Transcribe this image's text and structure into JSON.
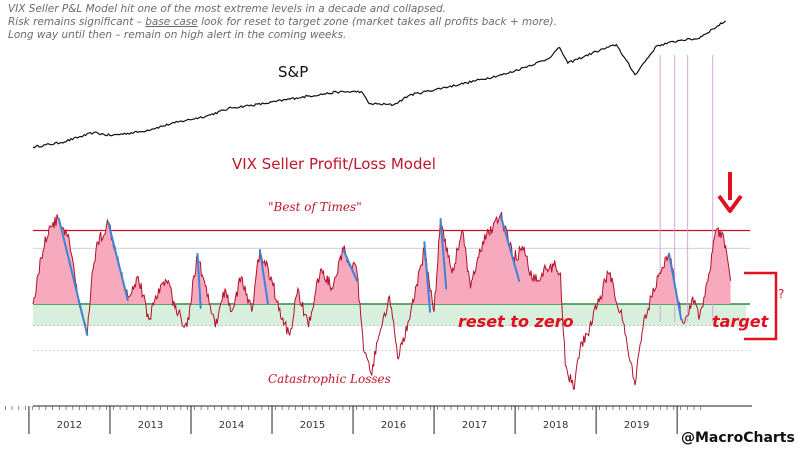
{
  "notes": {
    "line1": "VIX Seller P&L Model hit one of the most extreme levels in a decade and collapsed.",
    "line2_pre": "Risk remains significant – ",
    "line2_ul": "base case",
    "line2_post": " look for reset to target zone (market takes all profits back + more).",
    "line3": "Long way until then – remain on high alert in the coming weeks."
  },
  "labels": {
    "snp": "S&P",
    "model_title": "VIX Seller Profit/Loss Model",
    "best_of_times": "\"Best of Times\"",
    "catastrophic": "Catastrophic Losses",
    "reset": "reset to zero",
    "target": "target",
    "question": "?",
    "credit": "@MacroCharts"
  },
  "colors": {
    "sp_line": "#111111",
    "pnl_line": "#b3122a",
    "pnl_fill": "#f7a9bd",
    "target_zone": "#d9efdd",
    "target_line": "#2e8b3e",
    "downtrend": "#3a86d6",
    "arrow": "#e01020",
    "vline": "#d79ad2",
    "upper_line": "#c0152a"
  },
  "chart_data": {
    "type": "line",
    "title": "VIX Seller Profit/Loss Model",
    "xlabel": "",
    "ylabel": "",
    "x_tick_labels": [
      "2012",
      "2013",
      "2014",
      "2015",
      "2016",
      "2017",
      "2018",
      "2019"
    ],
    "x_range": [
      2011.55,
      2020.35
    ],
    "series": [
      {
        "name": "S&P",
        "points": [
          [
            2011.55,
            1150
          ],
          [
            2011.9,
            1230
          ],
          [
            2012.3,
            1400
          ],
          [
            2012.5,
            1350
          ],
          [
            2012.9,
            1420
          ],
          [
            2013.3,
            1570
          ],
          [
            2013.7,
            1690
          ],
          [
            2014.0,
            1830
          ],
          [
            2014.4,
            1900
          ],
          [
            2014.8,
            2000
          ],
          [
            2015.3,
            2100
          ],
          [
            2015.6,
            2110
          ],
          [
            2015.7,
            1900
          ],
          [
            2016.0,
            1880
          ],
          [
            2016.2,
            2050
          ],
          [
            2016.6,
            2170
          ],
          [
            2016.9,
            2260
          ],
          [
            2017.4,
            2420
          ],
          [
            2017.9,
            2670
          ],
          [
            2018.05,
            2870
          ],
          [
            2018.15,
            2600
          ],
          [
            2018.5,
            2800
          ],
          [
            2018.75,
            2920
          ],
          [
            2018.98,
            2400
          ],
          [
            2019.25,
            2900
          ],
          [
            2019.55,
            3000
          ],
          [
            2019.75,
            3020
          ],
          [
            2020.1,
            3330
          ]
        ]
      },
      {
        "name": "VIX Seller P&L",
        "points": [
          [
            2011.55,
            0.0
          ],
          [
            2011.65,
            0.6
          ],
          [
            2011.75,
            1.0
          ],
          [
            2011.87,
            1.1
          ],
          [
            2012.0,
            0.8
          ],
          [
            2012.1,
            0.1
          ],
          [
            2012.22,
            -0.4
          ],
          [
            2012.28,
            0.4
          ],
          [
            2012.35,
            0.8
          ],
          [
            2012.48,
            1.05
          ],
          [
            2012.6,
            0.6
          ],
          [
            2012.72,
            0.1
          ],
          [
            2012.85,
            0.35
          ],
          [
            2012.98,
            -0.2
          ],
          [
            2013.1,
            0.2
          ],
          [
            2013.22,
            0.3
          ],
          [
            2013.3,
            -0.05
          ],
          [
            2013.45,
            -0.3
          ],
          [
            2013.58,
            0.65
          ],
          [
            2013.7,
            0.1
          ],
          [
            2013.8,
            -0.3
          ],
          [
            2013.92,
            0.2
          ],
          [
            2014.0,
            -0.1
          ],
          [
            2014.12,
            0.35
          ],
          [
            2014.25,
            -0.1
          ],
          [
            2014.35,
            0.7
          ],
          [
            2014.5,
            0.3
          ],
          [
            2014.62,
            -0.2
          ],
          [
            2014.72,
            -0.4
          ],
          [
            2014.82,
            0.2
          ],
          [
            2014.95,
            -0.3
          ],
          [
            2015.1,
            0.45
          ],
          [
            2015.25,
            0.2
          ],
          [
            2015.38,
            0.7
          ],
          [
            2015.55,
            0.4
          ],
          [
            2015.63,
            -0.6
          ],
          [
            2015.72,
            -0.9
          ],
          [
            2015.85,
            -0.3
          ],
          [
            2015.95,
            0.1
          ],
          [
            2016.05,
            -0.7
          ],
          [
            2016.2,
            -0.2
          ],
          [
            2016.38,
            0.7
          ],
          [
            2016.5,
            -0.1
          ],
          [
            2016.58,
            1.1
          ],
          [
            2016.72,
            0.4
          ],
          [
            2016.85,
            0.95
          ],
          [
            2016.95,
            0.2
          ],
          [
            2017.05,
            0.6
          ],
          [
            2017.15,
            0.9
          ],
          [
            2017.32,
            1.15
          ],
          [
            2017.48,
            0.6
          ],
          [
            2017.6,
            0.7
          ],
          [
            2017.72,
            0.3
          ],
          [
            2017.88,
            0.45
          ],
          [
            2018.0,
            0.5
          ],
          [
            2018.06,
            0.4
          ],
          [
            2018.12,
            -0.8
          ],
          [
            2018.22,
            -1.1
          ],
          [
            2018.3,
            -0.6
          ],
          [
            2018.42,
            -0.3
          ],
          [
            2018.55,
            0.1
          ],
          [
            2018.65,
            0.4
          ],
          [
            2018.72,
            0.2
          ],
          [
            2018.8,
            -0.1
          ],
          [
            2018.88,
            -0.5
          ],
          [
            2018.98,
            -1.05
          ],
          [
            2019.08,
            -0.3
          ],
          [
            2019.18,
            0.1
          ],
          [
            2019.28,
            0.4
          ],
          [
            2019.4,
            0.65
          ],
          [
            2019.5,
            0.1
          ],
          [
            2019.58,
            -0.25
          ],
          [
            2019.68,
            0.05
          ],
          [
            2019.78,
            -0.15
          ],
          [
            2019.88,
            0.3
          ],
          [
            2019.96,
            0.85
          ],
          [
            2020.03,
            0.95
          ],
          [
            2020.1,
            0.75
          ],
          [
            2020.16,
            0.3
          ]
        ]
      }
    ],
    "reference_lines": [
      {
        "name": "Best of Times",
        "value": 0.95
      },
      {
        "name": "zero",
        "value": 0.0
      },
      {
        "name": "target zone lower",
        "value": -0.28
      },
      {
        "name": "Catastrophic Losses",
        "value": -0.6
      }
    ],
    "ylim": [
      -1.5,
      1.5
    ]
  }
}
